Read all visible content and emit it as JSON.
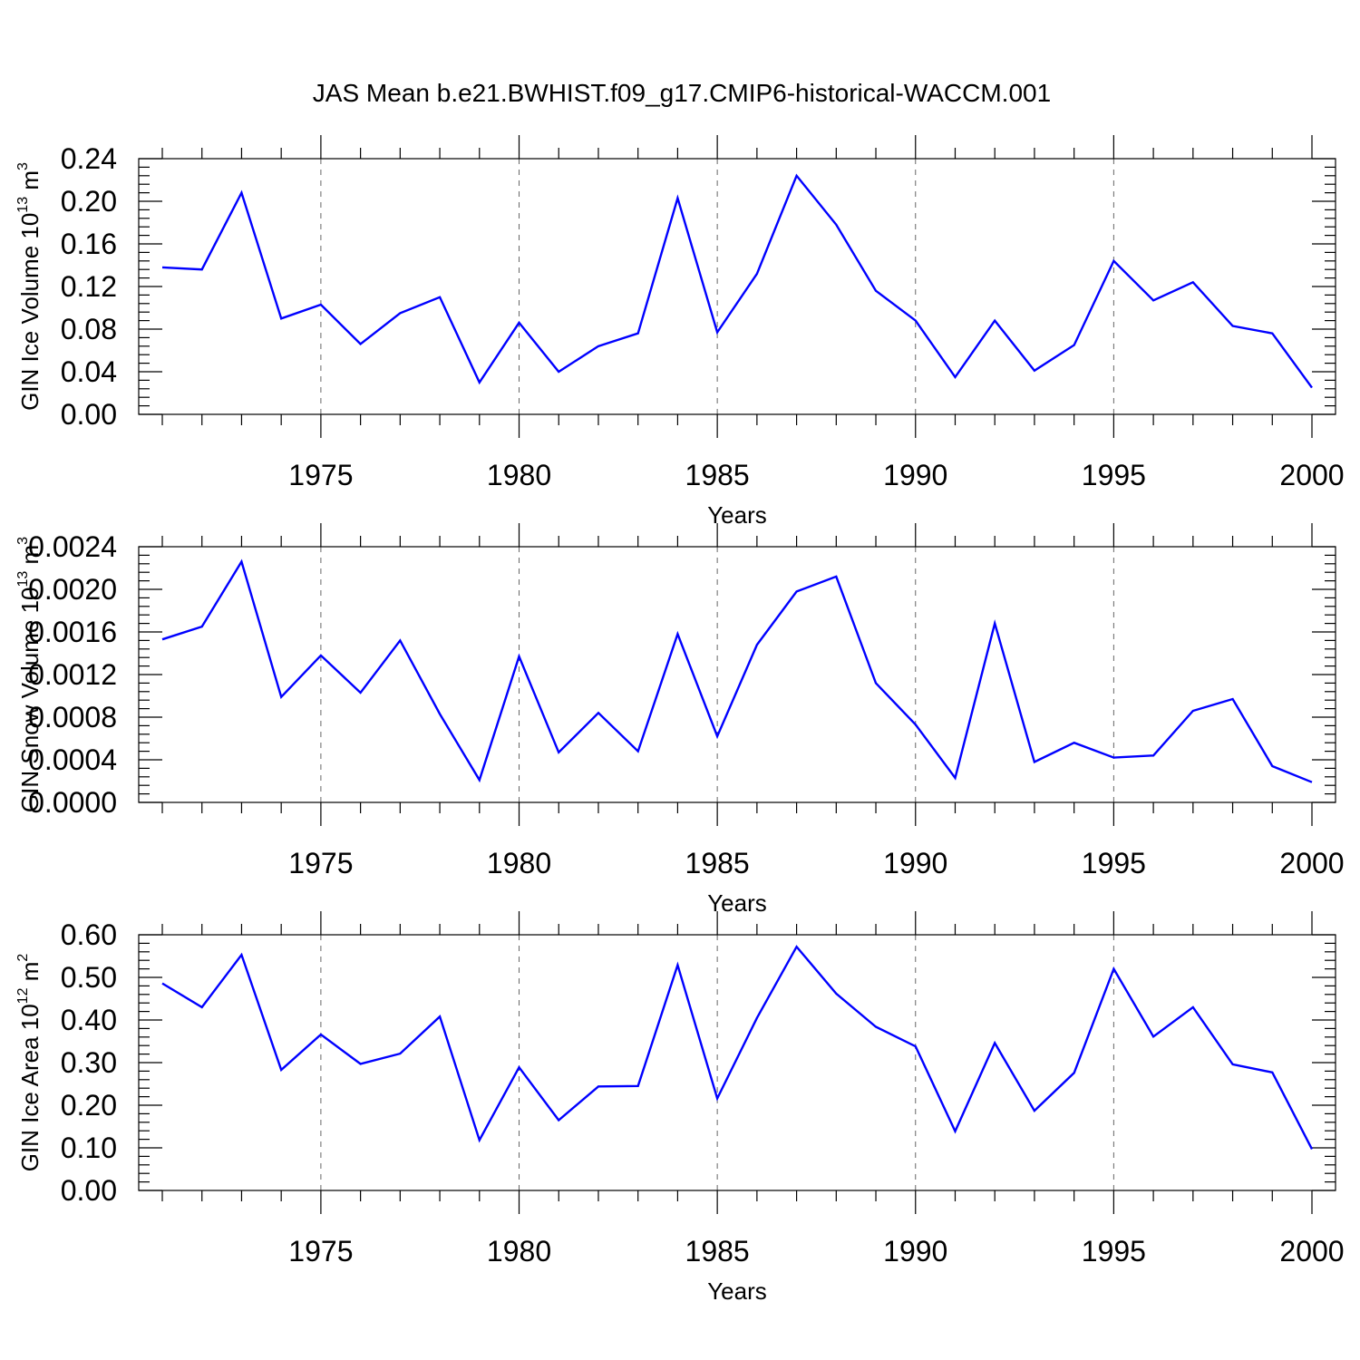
{
  "title": "JAS Mean b.e21.BWHIST.f09_g17.CMIP6-historical-WACCM.001",
  "colors": {
    "line": "#0000ff",
    "axis": "#000000",
    "grid": "#666666"
  },
  "chart_data": [
    {
      "type": "line",
      "ylabel": {
        "text": "GIN Ice Volume 10",
        "exponent": "13",
        "unit": " m",
        "unit_exponent": "3"
      },
      "xlabel": "Years",
      "xlim": [
        1971,
        2000
      ],
      "ylim": [
        0.0,
        0.24
      ],
      "y_ticks": [
        "0.00",
        "0.04",
        "0.08",
        "0.12",
        "0.16",
        "0.20",
        "0.24"
      ],
      "x_ticks": [
        "1975",
        "1980",
        "1985",
        "1990",
        "1995",
        "2000"
      ],
      "grid": "vertical dashed at major x ticks",
      "series": [
        {
          "x": [
            1971,
            1972,
            1973,
            1974,
            1975,
            1976,
            1977,
            1978,
            1979,
            1980,
            1981,
            1982,
            1983,
            1984,
            1985,
            1986,
            1987,
            1988,
            1989,
            1990,
            1991,
            1992,
            1993,
            1994,
            1995,
            1996,
            1997,
            1998,
            1999,
            2000
          ],
          "values": [
            0.138,
            0.136,
            0.208,
            0.09,
            0.103,
            0.066,
            0.095,
            0.11,
            0.03,
            0.086,
            0.04,
            0.064,
            0.076,
            0.203,
            0.077,
            0.132,
            0.224,
            0.178,
            0.116,
            0.088,
            0.035,
            0.088,
            0.041,
            0.065,
            0.144,
            0.107,
            0.124,
            0.083,
            0.076,
            0.025
          ]
        }
      ]
    },
    {
      "type": "line",
      "ylabel": {
        "text": "GIN Snow Volume 10",
        "exponent": "13",
        "unit": " m",
        "unit_exponent": "3"
      },
      "xlabel": "Years",
      "xlim": [
        1971,
        2000
      ],
      "ylim": [
        0.0,
        0.0024
      ],
      "y_ticks": [
        "0.0000",
        "0.0004",
        "0.0008",
        "0.0012",
        "0.0016",
        "0.0020",
        "0.0024"
      ],
      "x_ticks": [
        "1975",
        "1980",
        "1985",
        "1990",
        "1995",
        "2000"
      ],
      "grid": "vertical dashed at major x ticks",
      "series": [
        {
          "x": [
            1971,
            1972,
            1973,
            1974,
            1975,
            1976,
            1977,
            1978,
            1979,
            1980,
            1981,
            1982,
            1983,
            1984,
            1985,
            1986,
            1987,
            1988,
            1989,
            1990,
            1991,
            1992,
            1993,
            1994,
            1995,
            1996,
            1997,
            1998,
            1999,
            2000
          ],
          "values": [
            0.00153,
            0.00165,
            0.00226,
            0.00099,
            0.00138,
            0.00103,
            0.00152,
            0.00083,
            0.00021,
            0.00137,
            0.00047,
            0.00084,
            0.00048,
            0.00158,
            0.00062,
            0.00148,
            0.00198,
            0.00212,
            0.00112,
            0.00073,
            0.00023,
            0.00168,
            0.00038,
            0.00056,
            0.00042,
            0.00044,
            0.00086,
            0.00097,
            0.00034,
            0.00019
          ]
        }
      ]
    },
    {
      "type": "line",
      "ylabel": {
        "text": "GIN Ice Area 10",
        "exponent": "12",
        "unit": " m",
        "unit_exponent": "2"
      },
      "xlabel": "Years",
      "xlim": [
        1971,
        2000
      ],
      "ylim": [
        0.0,
        0.6
      ],
      "y_ticks": [
        "0.00",
        "0.10",
        "0.20",
        "0.30",
        "0.40",
        "0.50",
        "0.60"
      ],
      "x_ticks": [
        "1975",
        "1980",
        "1985",
        "1990",
        "1995",
        "2000"
      ],
      "grid": "vertical dashed at major x ticks",
      "series": [
        {
          "x": [
            1971,
            1972,
            1973,
            1974,
            1975,
            1976,
            1977,
            1978,
            1979,
            1980,
            1981,
            1982,
            1983,
            1984,
            1985,
            1986,
            1987,
            1988,
            1989,
            1990,
            1991,
            1992,
            1993,
            1994,
            1995,
            1996,
            1997,
            1998,
            1999,
            2000
          ],
          "values": [
            0.486,
            0.43,
            0.553,
            0.283,
            0.366,
            0.297,
            0.321,
            0.408,
            0.118,
            0.289,
            0.165,
            0.244,
            0.245,
            0.529,
            0.216,
            0.405,
            0.572,
            0.462,
            0.384,
            0.338,
            0.139,
            0.346,
            0.187,
            0.276,
            0.52,
            0.361,
            0.43,
            0.296,
            0.277,
            0.097
          ]
        }
      ]
    }
  ]
}
